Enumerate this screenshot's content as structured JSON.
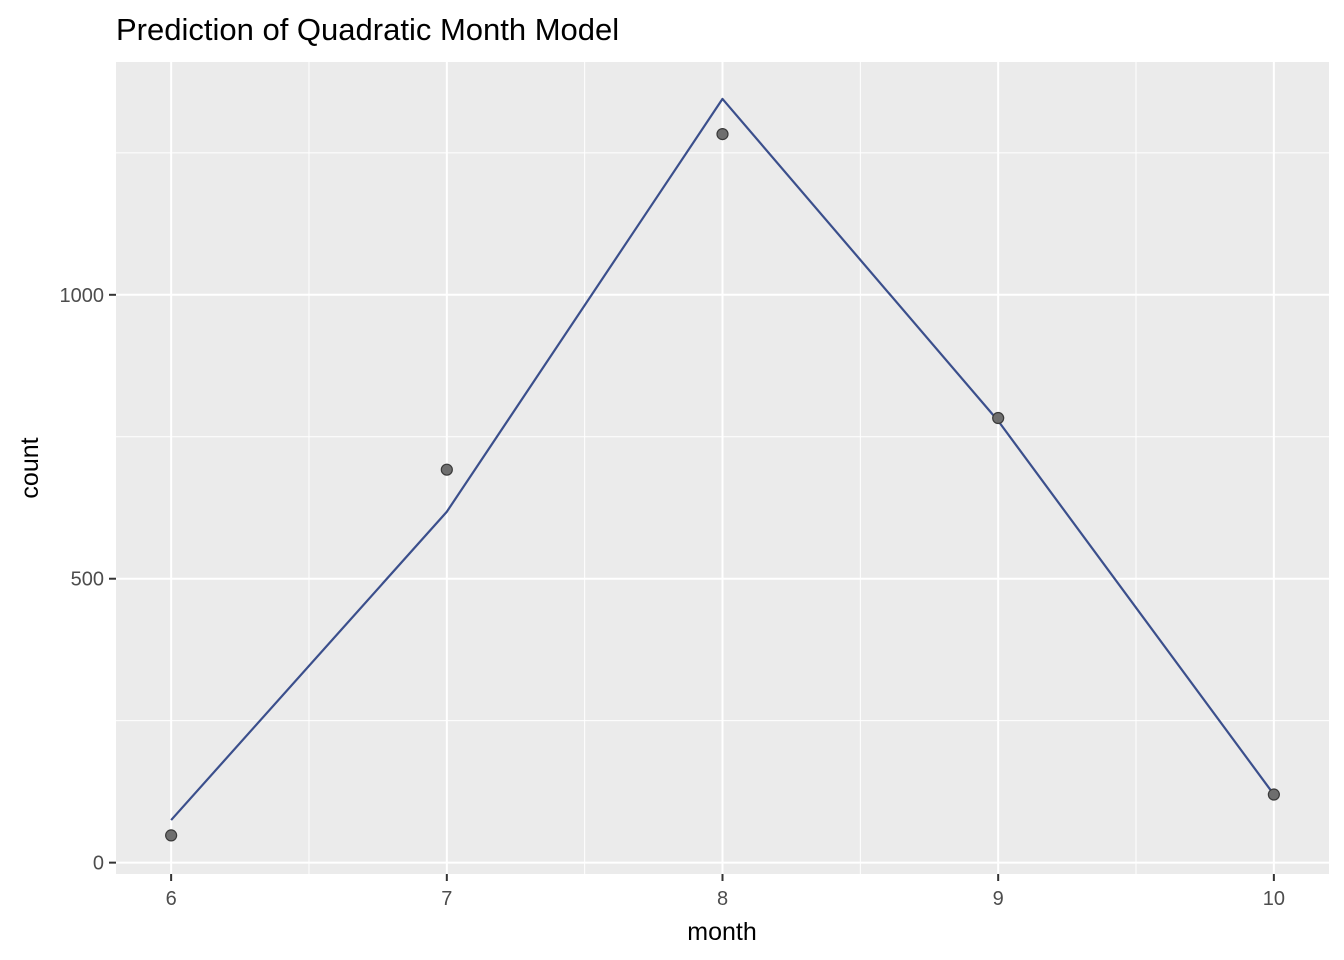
{
  "chart_data": {
    "type": "line",
    "title": "Prediction of Quadratic Month Model",
    "xlabel": "month",
    "ylabel": "count",
    "xlim": [
      5.8,
      10.2
    ],
    "ylim": [
      -20,
      1410
    ],
    "x_ticks": [
      6,
      7,
      8,
      9,
      10
    ],
    "x_tick_labels": [
      "6",
      "7",
      "8",
      "9",
      "10"
    ],
    "y_ticks": [
      0,
      500,
      1000
    ],
    "y_tick_labels": [
      "0",
      "500",
      "1000"
    ],
    "grid": true,
    "legend": "none",
    "series": [
      {
        "kind": "line",
        "x": [
          6,
          7,
          8,
          9,
          10
        ],
        "y": [
          75,
          618,
          1345,
          778,
          120
        ],
        "color": "#3b4f8c"
      },
      {
        "kind": "points",
        "x": [
          6,
          7,
          8,
          9,
          10
        ],
        "y": [
          48,
          692,
          1283,
          783,
          120
        ],
        "color": "#6e6e6e"
      }
    ],
    "panel_background": "#ebebeb",
    "grid_color": "#ffffff"
  }
}
